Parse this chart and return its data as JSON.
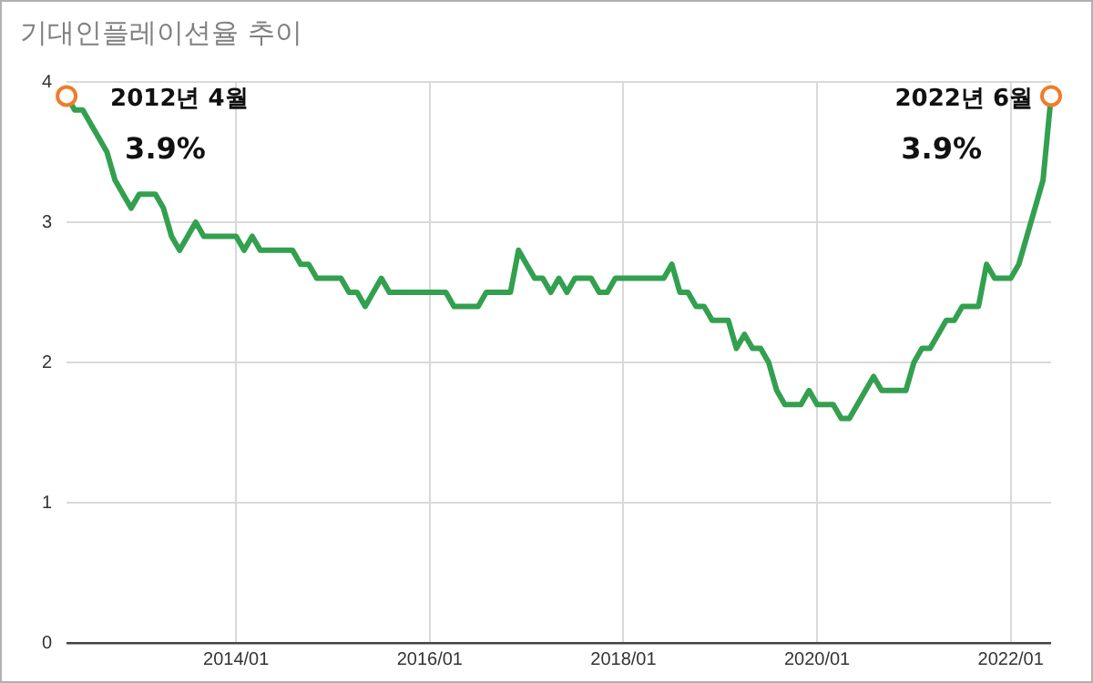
{
  "chart_data": {
    "type": "line",
    "title": "기대인플레이션율 추이",
    "x": [
      "2012-04",
      "2012-05",
      "2012-06",
      "2012-07",
      "2012-08",
      "2012-09",
      "2012-10",
      "2012-11",
      "2012-12",
      "2013-01",
      "2013-02",
      "2013-03",
      "2013-04",
      "2013-05",
      "2013-06",
      "2013-07",
      "2013-08",
      "2013-09",
      "2013-10",
      "2013-11",
      "2013-12",
      "2014-01",
      "2014-02",
      "2014-03",
      "2014-04",
      "2014-05",
      "2014-06",
      "2014-07",
      "2014-08",
      "2014-09",
      "2014-10",
      "2014-11",
      "2014-12",
      "2015-01",
      "2015-02",
      "2015-03",
      "2015-04",
      "2015-05",
      "2015-06",
      "2015-07",
      "2015-08",
      "2015-09",
      "2015-10",
      "2015-11",
      "2015-12",
      "2016-01",
      "2016-02",
      "2016-03",
      "2016-04",
      "2016-05",
      "2016-06",
      "2016-07",
      "2016-08",
      "2016-09",
      "2016-10",
      "2016-11",
      "2016-12",
      "2017-01",
      "2017-02",
      "2017-03",
      "2017-04",
      "2017-05",
      "2017-06",
      "2017-07",
      "2017-08",
      "2017-09",
      "2017-10",
      "2017-11",
      "2017-12",
      "2018-01",
      "2018-02",
      "2018-03",
      "2018-04",
      "2018-05",
      "2018-06",
      "2018-07",
      "2018-08",
      "2018-09",
      "2018-10",
      "2018-11",
      "2018-12",
      "2019-01",
      "2019-02",
      "2019-03",
      "2019-04",
      "2019-05",
      "2019-06",
      "2019-07",
      "2019-08",
      "2019-09",
      "2019-10",
      "2019-11",
      "2019-12",
      "2020-01",
      "2020-02",
      "2020-03",
      "2020-04",
      "2020-05",
      "2020-06",
      "2020-07",
      "2020-08",
      "2020-09",
      "2020-10",
      "2020-11",
      "2020-12",
      "2021-01",
      "2021-02",
      "2021-03",
      "2021-04",
      "2021-05",
      "2021-06",
      "2021-07",
      "2021-08",
      "2021-09",
      "2021-10",
      "2021-11",
      "2021-12",
      "2022-01",
      "2022-02",
      "2022-03",
      "2022-04",
      "2022-05",
      "2022-06"
    ],
    "series": [
      {
        "type": "line",
        "color": "#33a04f",
        "values": [
          3.9,
          3.8,
          3.8,
          3.7,
          3.6,
          3.5,
          3.3,
          3.2,
          3.1,
          3.2,
          3.2,
          3.2,
          3.1,
          2.9,
          2.8,
          2.9,
          3.0,
          2.9,
          2.9,
          2.9,
          2.9,
          2.9,
          2.8,
          2.9,
          2.8,
          2.8,
          2.8,
          2.8,
          2.8,
          2.7,
          2.7,
          2.6,
          2.6,
          2.6,
          2.6,
          2.5,
          2.5,
          2.4,
          2.5,
          2.6,
          2.5,
          2.5,
          2.5,
          2.5,
          2.5,
          2.5,
          2.5,
          2.5,
          2.4,
          2.4,
          2.4,
          2.4,
          2.5,
          2.5,
          2.5,
          2.5,
          2.8,
          2.7,
          2.6,
          2.6,
          2.5,
          2.6,
          2.5,
          2.6,
          2.6,
          2.6,
          2.5,
          2.5,
          2.6,
          2.6,
          2.6,
          2.6,
          2.6,
          2.6,
          2.6,
          2.7,
          2.5,
          2.5,
          2.4,
          2.4,
          2.3,
          2.3,
          2.3,
          2.1,
          2.2,
          2.1,
          2.1,
          2.0,
          1.8,
          1.7,
          1.7,
          1.7,
          1.8,
          1.7,
          1.7,
          1.7,
          1.6,
          1.6,
          1.7,
          1.8,
          1.9,
          1.8,
          1.8,
          1.8,
          1.8,
          2.0,
          2.1,
          2.1,
          2.2,
          2.3,
          2.3,
          2.4,
          2.4,
          2.4,
          2.7,
          2.6,
          2.6,
          2.6,
          2.7,
          2.9,
          3.1,
          3.3,
          3.9
        ]
      },
      {
        "type": "scatter",
        "color": "#f07c2a",
        "marker": "circle",
        "x": [
          "2012-04",
          "2022-06"
        ],
        "values": [
          3.9,
          3.9
        ]
      }
    ],
    "annotations": [
      {
        "text": "2012년 4월",
        "x": "2012-04",
        "y": 3.9
      },
      {
        "text": "3.9%",
        "x": "2012-04",
        "y": 3.9
      },
      {
        "text": "2022년 6월",
        "x": "2022-06",
        "y": 3.9
      },
      {
        "text": "3.9%",
        "x": "2022-06",
        "y": 3.9
      }
    ],
    "xlim": [
      "2012-04",
      "2022-06"
    ],
    "xticks": [
      {
        "value": "2014-01",
        "label": "2014/01"
      },
      {
        "value": "2016-01",
        "label": "2016/01"
      },
      {
        "value": "2018-01",
        "label": "2018/01"
      },
      {
        "value": "2020-01",
        "label": "2020/01"
      },
      {
        "value": "2022-01",
        "label": "2022/01"
      }
    ],
    "ylim": [
      0,
      4
    ],
    "yticks": [
      0,
      1,
      2,
      3,
      4
    ],
    "grid": true,
    "legend": false,
    "marker": "none",
    "line_style": "solid"
  }
}
